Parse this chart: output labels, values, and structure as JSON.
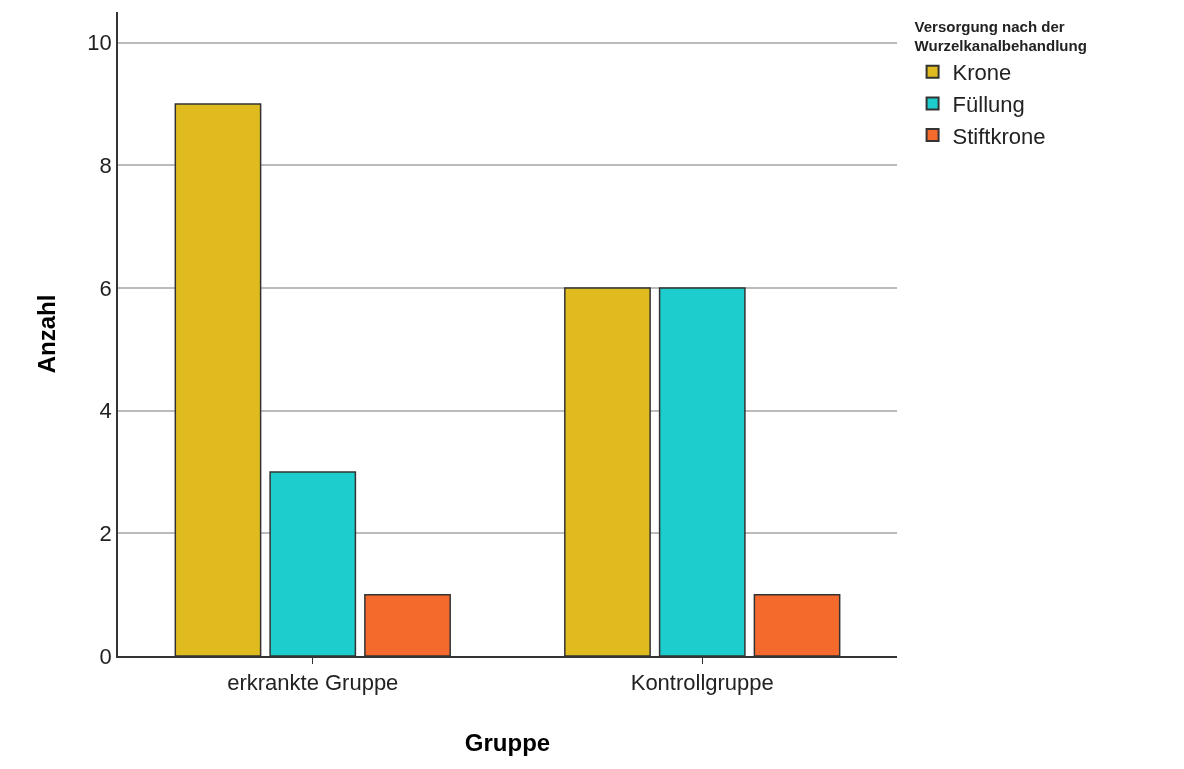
{
  "chart_data": {
    "type": "bar",
    "xlabel": "Gruppe",
    "ylabel": "Anzahl",
    "legend_title": "Versorgung nach der Wurzelkanalbehandlung",
    "categories": [
      "erkrankte Gruppe",
      "Kontrollgruppe"
    ],
    "series": [
      {
        "name": "Krone",
        "color": "#dfbb20",
        "values": [
          9,
          6
        ]
      },
      {
        "name": "Füllung",
        "color": "#1dcccc",
        "values": [
          3,
          6
        ]
      },
      {
        "name": "Stiftkrone",
        "color": "#f4692c",
        "values": [
          1,
          1
        ]
      }
    ],
    "ylim": [
      0,
      10.5
    ],
    "yticks": [
      0,
      2,
      4,
      6,
      8,
      10
    ],
    "grid": "y",
    "legend": "top right"
  }
}
